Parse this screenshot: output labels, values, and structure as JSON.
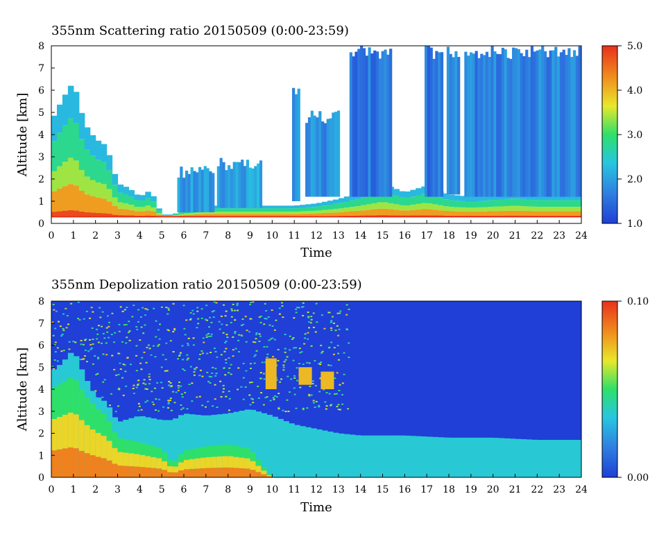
{
  "chart_data": [
    {
      "type": "heatmap",
      "title": "355nm Scattering ratio  20150509 (0:00-23:59)",
      "xlabel": "Time",
      "ylabel": "Altitude [km]",
      "xlim": [
        0,
        24
      ],
      "ylim": [
        0,
        8
      ],
      "x_ticks": [
        "0",
        "1",
        "2",
        "3",
        "4",
        "5",
        "6",
        "7",
        "8",
        "9",
        "10",
        "11",
        "12",
        "13",
        "14",
        "15",
        "16",
        "17",
        "18",
        "19",
        "20",
        "21",
        "22",
        "23",
        "24"
      ],
      "y_ticks": [
        "0",
        "1",
        "2",
        "3",
        "4",
        "5",
        "6",
        "7",
        "8"
      ],
      "colorbar": {
        "min": 1.0,
        "max": 5.0,
        "tick_labels": [
          "1.0",
          "2.0",
          "3.0",
          "4.0",
          "5.0"
        ],
        "tick_values": [
          1.0,
          2.0,
          3.0,
          4.0,
          5.0
        ]
      },
      "colormap": [
        "#1f3fd6",
        "#2f7fe0",
        "#27c6e0",
        "#2ee06a",
        "#e8e82a",
        "#f08a1e",
        "#e8301c"
      ],
      "below_range_color": "#ffffff",
      "ground_layer_km": 0.3,
      "aerosol_top_km": [
        [
          0,
          4.6
        ],
        [
          0.5,
          5.6
        ],
        [
          1,
          6.4
        ],
        [
          1.5,
          4.5
        ],
        [
          2,
          3.8
        ],
        [
          2.5,
          3.5
        ],
        [
          3,
          1.8
        ],
        [
          3.5,
          1.6
        ],
        [
          4,
          1.2
        ],
        [
          4.5,
          1.5
        ],
        [
          5,
          0.4
        ],
        [
          5.5,
          0.4
        ],
        [
          6,
          0.6
        ],
        [
          7,
          0.8
        ],
        [
          8,
          0.8
        ],
        [
          9,
          0.8
        ],
        [
          10,
          0.8
        ],
        [
          11,
          0.8
        ],
        [
          12,
          0.9
        ],
        [
          13,
          1.1
        ],
        [
          14,
          1.4
        ],
        [
          15,
          1.8
        ],
        [
          16,
          1.4
        ],
        [
          17,
          1.7
        ],
        [
          18,
          1.3
        ],
        [
          19,
          1.2
        ],
        [
          20,
          1.3
        ],
        [
          21,
          1.4
        ],
        [
          22,
          1.3
        ],
        [
          23,
          1.3
        ],
        [
          24,
          1.3
        ]
      ],
      "clouds": [
        {
          "t0": 5.7,
          "t1": 7.3,
          "base_km": 0.5,
          "top_km": 2.6,
          "sr": 1.6
        },
        {
          "t0": 7.5,
          "t1": 9.5,
          "base_km": 0.7,
          "top_km": 3.0,
          "sr": 1.7
        },
        {
          "t0": 10.9,
          "t1": 11.2,
          "base_km": 1.0,
          "top_km": 6.2,
          "sr": 1.5
        },
        {
          "t0": 11.5,
          "t1": 13.0,
          "base_km": 1.2,
          "top_km": 5.1,
          "sr": 1.5
        },
        {
          "t0": 13.5,
          "t1": 15.3,
          "base_km": 1.2,
          "top_km": 8.0,
          "sr": 1.3
        },
        {
          "t0": 16.9,
          "t1": 17.7,
          "base_km": 1.2,
          "top_km": 8.0,
          "sr": 1.3
        },
        {
          "t0": 17.9,
          "t1": 18.5,
          "base_km": 1.3,
          "top_km": 8.0,
          "sr": 1.4
        },
        {
          "t0": 18.7,
          "t1": 24.0,
          "base_km": 1.2,
          "top_km": 8.0,
          "sr": 1.4
        }
      ]
    },
    {
      "type": "heatmap",
      "title": "355nm Depolization ratio  20150509 (0:00-23:59)",
      "xlabel": "Time",
      "ylabel": "Altitude [km]",
      "xlim": [
        0,
        24
      ],
      "ylim": [
        0,
        8
      ],
      "x_ticks": [
        "0",
        "1",
        "2",
        "3",
        "4",
        "5",
        "6",
        "7",
        "8",
        "9",
        "10",
        "11",
        "12",
        "13",
        "14",
        "15",
        "16",
        "17",
        "18",
        "19",
        "20",
        "21",
        "22",
        "23",
        "24"
      ],
      "y_ticks": [
        "0",
        "1",
        "2",
        "3",
        "4",
        "5",
        "6",
        "7",
        "8"
      ],
      "colorbar": {
        "min": 0.0,
        "max": 0.1,
        "tick_labels": [
          "0.00",
          "0.10"
        ],
        "tick_values": [
          0.0,
          0.1
        ]
      },
      "colormap": [
        "#1f3fd6",
        "#2f7fe0",
        "#27c6e0",
        "#2ee06a",
        "#e8e82a",
        "#f08a1e",
        "#e8301c"
      ],
      "above_range_color": "#ffffff",
      "dust_top_km": [
        [
          0,
          4.8
        ],
        [
          0.5,
          5.2
        ],
        [
          1,
          5.8
        ],
        [
          1.5,
          4.6
        ],
        [
          2,
          3.7
        ],
        [
          2.5,
          3.4
        ],
        [
          3,
          2.5
        ],
        [
          4,
          2.8
        ],
        [
          5,
          2.6
        ],
        [
          5.5,
          2.6
        ],
        [
          6,
          2.9
        ],
        [
          7,
          2.8
        ],
        [
          8,
          2.9
        ],
        [
          9,
          3.1
        ],
        [
          10,
          2.8
        ],
        [
          11,
          2.4
        ],
        [
          12,
          2.2
        ],
        [
          13,
          2.0
        ],
        [
          14,
          1.9
        ],
        [
          16,
          1.9
        ],
        [
          18,
          1.8
        ],
        [
          20,
          1.8
        ],
        [
          22,
          1.7
        ],
        [
          24,
          1.7
        ]
      ],
      "dust_core_km": [
        [
          0,
          4.0
        ],
        [
          0.5,
          4.3
        ],
        [
          1,
          4.6
        ],
        [
          1.5,
          3.8
        ],
        [
          2,
          3.2
        ],
        [
          2.5,
          2.8
        ],
        [
          3,
          1.8
        ],
        [
          4,
          1.6
        ],
        [
          5,
          1.3
        ],
        [
          5.5,
          0.6
        ],
        [
          6,
          1.2
        ],
        [
          7,
          1.4
        ],
        [
          8,
          1.5
        ],
        [
          9,
          1.3
        ],
        [
          9.6,
          0.5
        ],
        [
          10,
          0.0
        ]
      ],
      "high_patches": [
        {
          "t0": 9.7,
          "t1": 10.2,
          "base_km": 4.0,
          "top_km": 5.4
        },
        {
          "t0": 11.2,
          "t1": 11.8,
          "base_km": 4.2,
          "top_km": 5.0
        },
        {
          "t0": 12.2,
          "t1": 12.8,
          "base_km": 4.0,
          "top_km": 4.8
        }
      ]
    }
  ]
}
